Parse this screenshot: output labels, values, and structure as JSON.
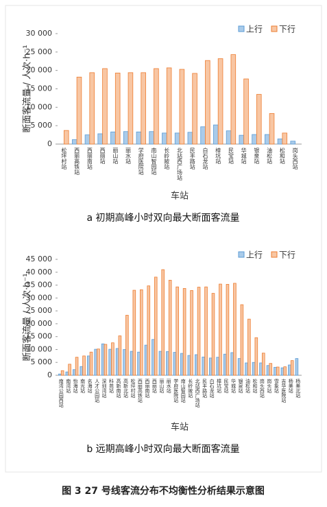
{
  "chart_data": [
    {
      "type": "bar",
      "title": "a  初期高峰小时双向最大断面客流量",
      "x_label": "车站",
      "y_label": "断面客流量 / 人次·h⁻¹",
      "categories": [
        "松坪村站",
        "西丽高铁站",
        "西丽南站",
        "西丽站",
        "丽山站",
        "丽水站",
        "学府医院站",
        "南山智园站",
        "长岭陂站",
        "北站西广场站",
        "民丰路站",
        "白石龙站",
        "樟坑站",
        "民宝站",
        "华城站",
        "银泉站",
        "油松站",
        "松和站",
        "岗头西站"
      ],
      "series": [
        {
          "name": "上行",
          "color": "#5b9bd5",
          "values": [
            null,
            1200,
            2500,
            2800,
            3300,
            3400,
            3300,
            3400,
            3000,
            3000,
            3200,
            4700,
            5200,
            3600,
            2400,
            2600,
            2600,
            1400,
            800
          ]
        },
        {
          "name": "下行",
          "color": "#ed7d31",
          "values": [
            3700,
            18200,
            19400,
            20500,
            19300,
            19400,
            19400,
            20500,
            20700,
            20300,
            19200,
            22700,
            23200,
            24300,
            17700,
            13500,
            8300,
            3000,
            null
          ]
        }
      ],
      "ylim": [
        0,
        30000
      ],
      "yticks": [
        0,
        {
          "value": 5000,
          "label": "5 000"
        },
        {
          "value": 10000,
          "label": "10 000"
        },
        {
          "value": 15000,
          "label": "15 000"
        },
        {
          "value": 20000,
          "label": "20 000"
        },
        {
          "value": 25000,
          "label": "25 000"
        },
        {
          "value": 30000,
          "label": "30 000"
        }
      ],
      "legend": "upper right"
    },
    {
      "type": "bar",
      "title": "b  远期高峰小时双向最大断面客流量",
      "x_label": "车站",
      "y_label": "断面客流量 / 人次·h⁻¹",
      "categories": [
        "南湾公园西站",
        "南湾站",
        "怡海站",
        "南光站",
        "名海站",
        "人才公园站",
        "深圳湾站",
        "科苑站",
        "高新南站",
        "高新北站",
        "松坪村站",
        "西丽高铁站",
        "西丽南站",
        "西丽站",
        "丽山站",
        "丽水站",
        "学府医院站",
        "南山智园站",
        "长岭陂站",
        "北站西广场站",
        "民丰路站",
        "白石龙站",
        "樟坑站",
        "民宝站",
        "华城站",
        "银泉站",
        "油松站",
        "松和站",
        "岗头西站",
        "岗头站",
        "雪象站",
        "吉华医院站",
        "杨美站",
        "杨美北站"
      ],
      "series": [
        {
          "name": "上行",
          "color": "#5b9bd5",
          "values": [
            500,
            1300,
            2200,
            3400,
            7500,
            10100,
            12200,
            10100,
            10400,
            10000,
            9300,
            9000,
            11700,
            13900,
            9300,
            9200,
            8900,
            8500,
            7700,
            8000,
            7100,
            6700,
            7000,
            8200,
            8800,
            6500,
            4800,
            5000,
            4800,
            3800,
            3100,
            2900,
            4000,
            6500
          ]
        },
        {
          "name": "下行",
          "color": "#ed7d31",
          "values": [
            1800,
            4300,
            7000,
            7500,
            9000,
            10200,
            12000,
            12600,
            15300,
            23300,
            33000,
            33200,
            34700,
            38100,
            41000,
            36900,
            34300,
            33700,
            32900,
            34200,
            34300,
            31800,
            35400,
            35300,
            35700,
            27400,
            21800,
            14600,
            8600,
            4600,
            3200,
            3300,
            5700,
            null
          ]
        }
      ],
      "ylim": [
        0,
        45000
      ],
      "yticks": [
        0,
        {
          "value": 5000,
          "label": "5 000"
        },
        {
          "value": 10000,
          "label": "10 000"
        },
        {
          "value": 15000,
          "label": "15 000"
        },
        {
          "value": 20000,
          "label": "20 000"
        },
        {
          "value": 25000,
          "label": "25 000"
        },
        {
          "value": 30000,
          "label": "30 000"
        },
        {
          "value": 35000,
          "label": "35 000"
        },
        {
          "value": 40000,
          "label": "40 000"
        },
        {
          "value": 45000,
          "label": "45 000"
        }
      ],
      "legend": "upper right"
    }
  ],
  "figure_caption": "图 3   27 号线客流分布不均衡性分析结果示意图"
}
